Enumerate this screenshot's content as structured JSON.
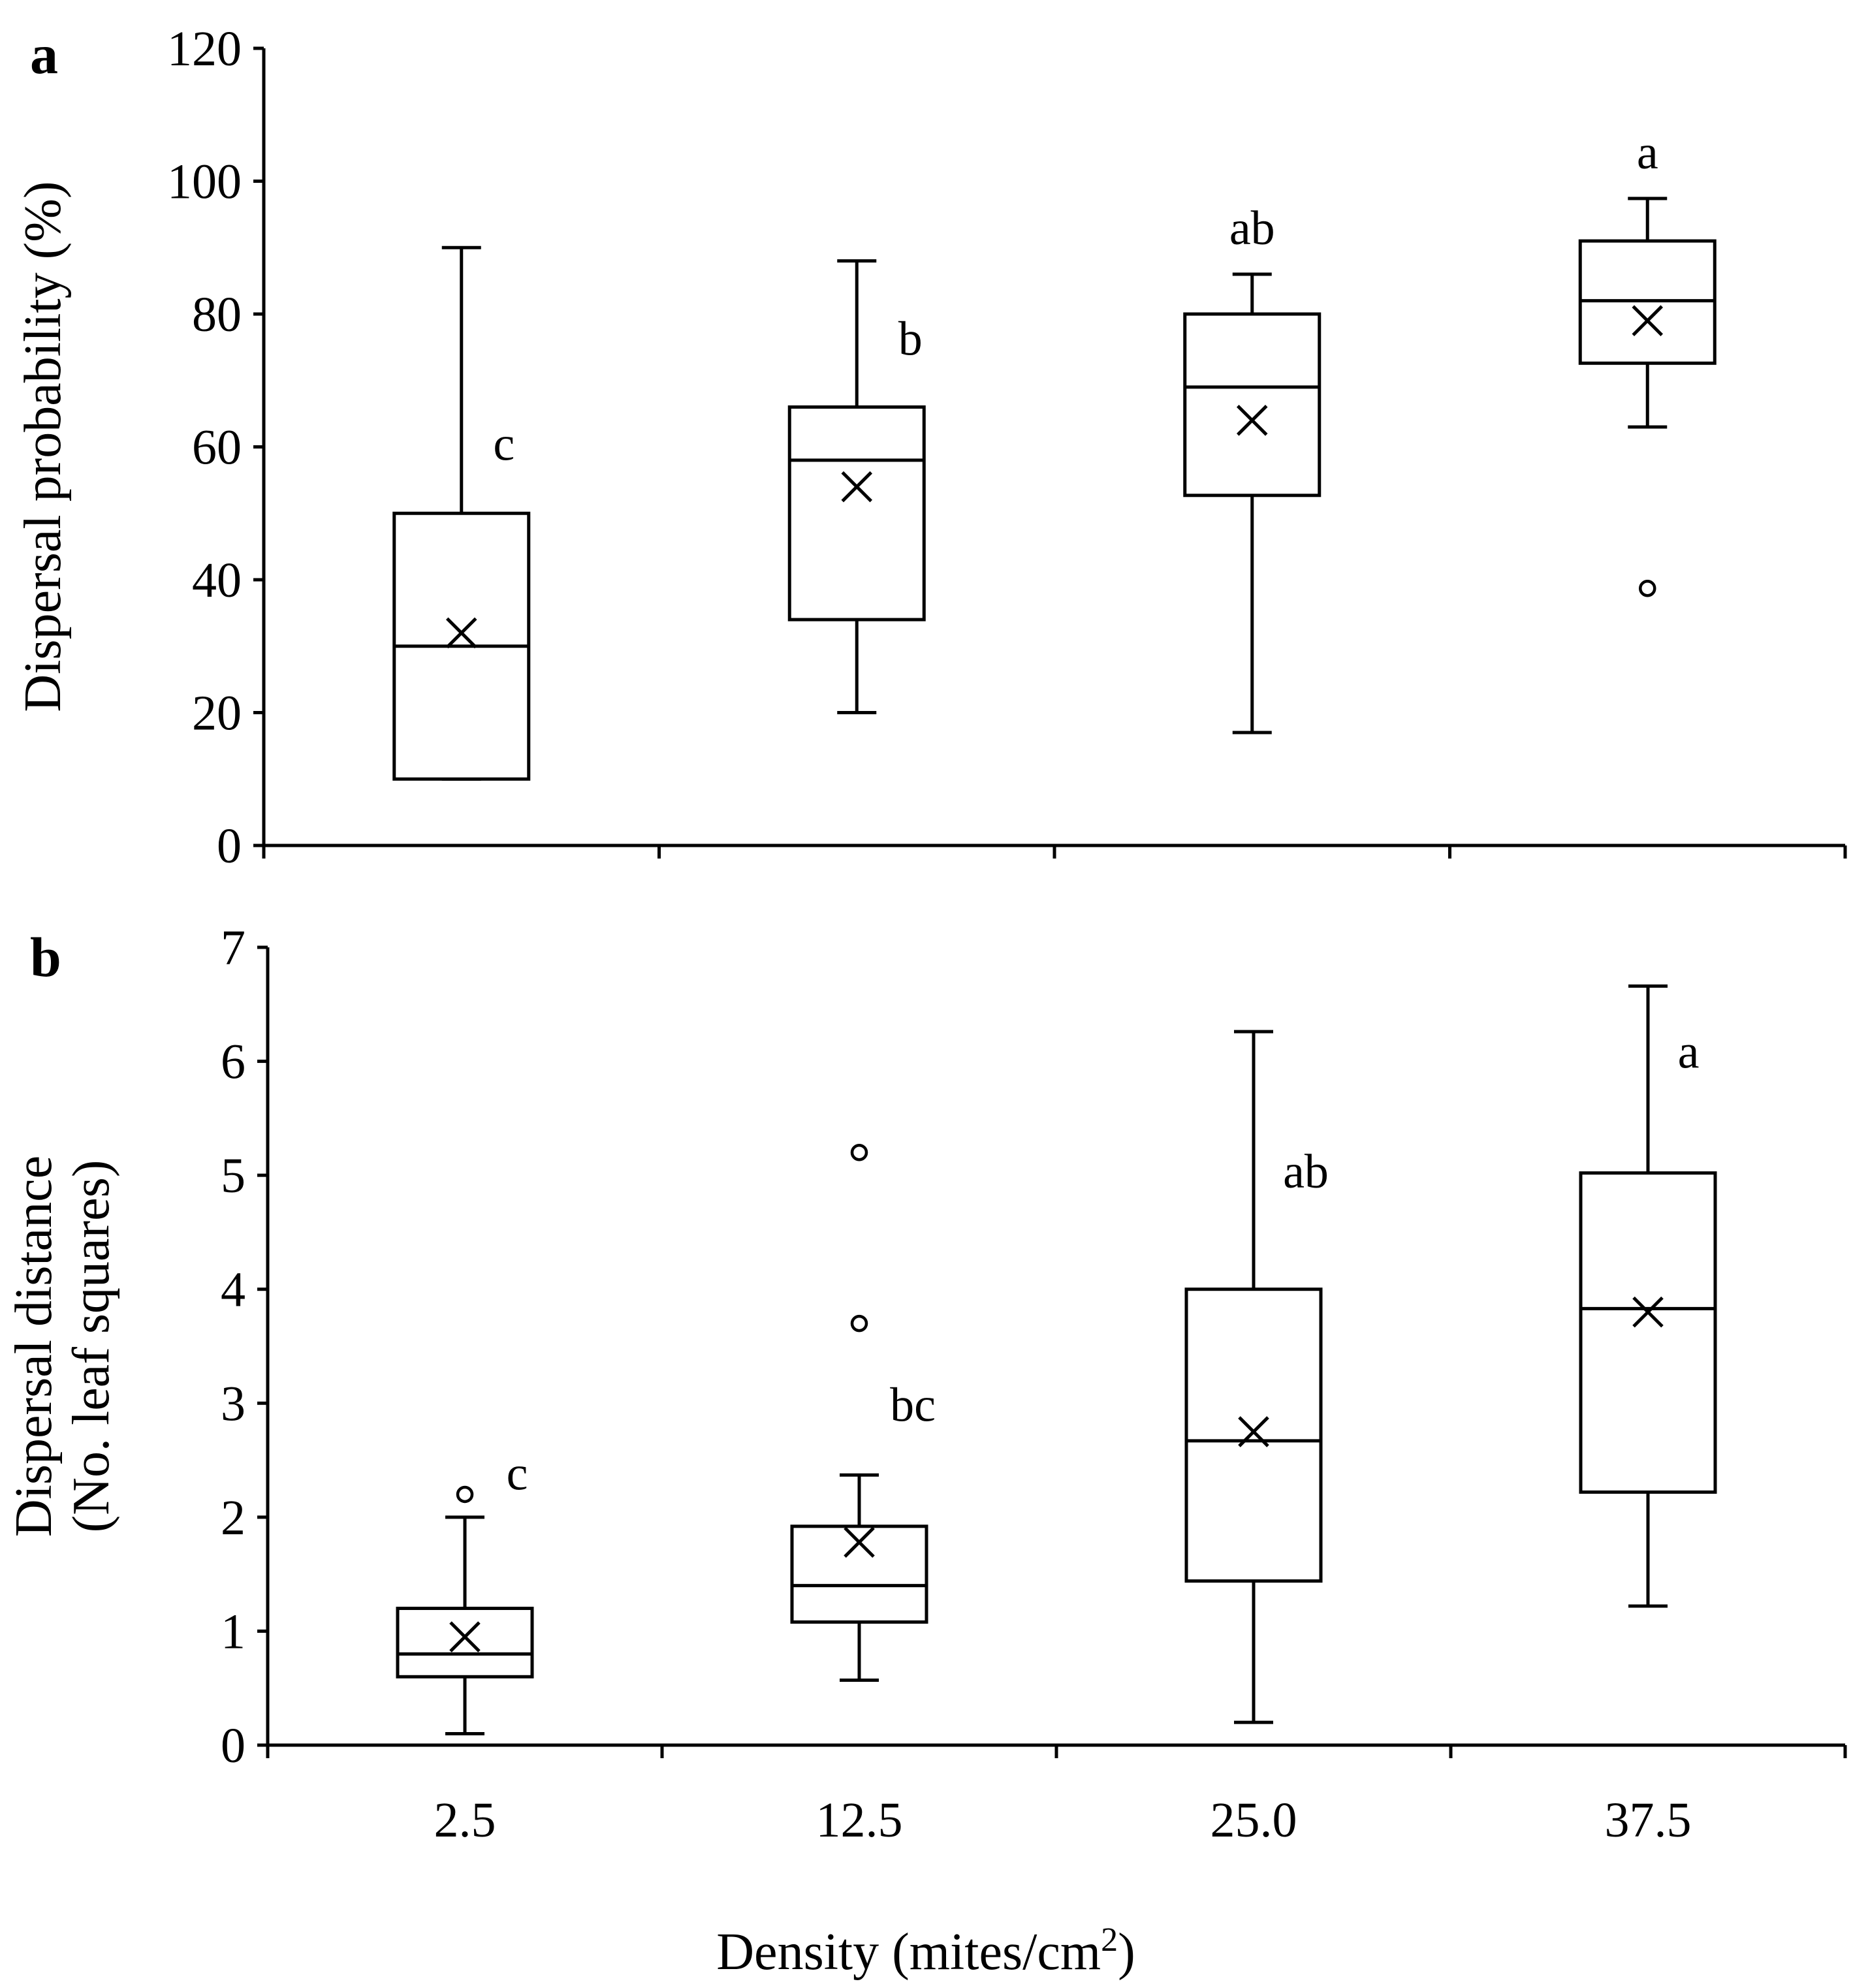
{
  "figure": {
    "xlabel_main": "Density (mites/cm",
    "xlabel_sup": "2",
    "xlabel_end": ")"
  },
  "chart_data": [
    {
      "type": "box",
      "panel_label": "a",
      "ylabel": "Dispersal probability (%)",
      "ylim": [
        0,
        120
      ],
      "yticks": [
        0,
        20,
        40,
        60,
        80,
        100,
        120
      ],
      "categories": [
        "2.5",
        "12.5",
        "25.0",
        "37.5"
      ],
      "boxes": [
        {
          "category": "2.5",
          "whisker_low": 10,
          "q1": 10,
          "median": 30,
          "q3": 50,
          "whisker_high": 90,
          "mean": 32,
          "outliers": [],
          "letter": "c"
        },
        {
          "category": "12.5",
          "whisker_low": 20,
          "q1": 34,
          "median": 58,
          "q3": 66,
          "whisker_high": 88,
          "mean": 54,
          "outliers": [],
          "letter": "b"
        },
        {
          "category": "25.0",
          "whisker_low": 17,
          "q1": 52.7,
          "median": 69,
          "q3": 80,
          "whisker_high": 86,
          "mean": 64,
          "outliers": [],
          "letter": "ab"
        },
        {
          "category": "37.5",
          "whisker_low": 63,
          "q1": 72.6,
          "median": 82,
          "q3": 91,
          "whisker_high": 97.4,
          "mean": 79,
          "outliers": [
            38.7
          ],
          "letter": "a"
        }
      ]
    },
    {
      "type": "box",
      "panel_label": "b",
      "ylabel_line1": "Dispersal distance",
      "ylabel_line2": "(No. leaf squares)",
      "ylim": [
        0,
        7
      ],
      "yticks": [
        0,
        1,
        2,
        3,
        4,
        5,
        6,
        7
      ],
      "categories": [
        "2.5",
        "12.5",
        "25.0",
        "37.5"
      ],
      "boxes": [
        {
          "category": "2.5",
          "whisker_low": 0.1,
          "q1": 0.6,
          "median": 0.8,
          "q3": 1.2,
          "whisker_high": 2.0,
          "mean": 0.95,
          "outliers": [
            2.2
          ],
          "letter": "c"
        },
        {
          "category": "12.5",
          "whisker_low": 0.57,
          "q1": 1.08,
          "median": 1.4,
          "q3": 1.92,
          "whisker_high": 2.37,
          "mean": 1.78,
          "outliers": [
            3.7,
            5.2
          ],
          "letter": "bc"
        },
        {
          "category": "25.0",
          "whisker_low": 0.2,
          "q1": 1.44,
          "median": 2.67,
          "q3": 4.0,
          "whisker_high": 6.26,
          "mean": 2.75,
          "outliers": [],
          "letter": "ab"
        },
        {
          "category": "37.5",
          "whisker_low": 1.22,
          "q1": 2.22,
          "median": 3.83,
          "q3": 5.02,
          "whisker_high": 6.66,
          "mean": 3.8,
          "outliers": [],
          "letter": "a"
        }
      ]
    }
  ]
}
